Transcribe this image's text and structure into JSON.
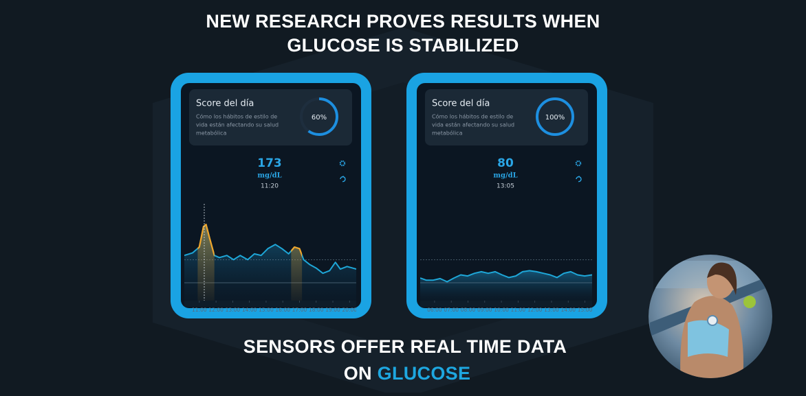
{
  "header": {
    "title_lines": [
      "NEW RESEARCH PROVES RESULTS WHEN",
      "GLUCOSE IS STABILIZED"
    ]
  },
  "panels": [
    {
      "score": {
        "title": "Score del día",
        "description": [
          "Cómo los hábitos de estilo de",
          "vida están afectando su salud",
          "metabólica"
        ],
        "percent": {
          "value": 60,
          "label": "60%"
        }
      },
      "reading": {
        "value": 173,
        "unit": "mg/dL",
        "time": "11:20"
      },
      "chart": {
        "type": "line",
        "x": [
          10.1,
          10.6,
          11.0,
          11.25,
          11.4,
          11.6,
          11.9,
          12.2,
          12.65,
          13.05,
          13.45,
          13.9,
          14.3,
          14.7,
          15.1,
          15.55,
          15.95,
          16.35,
          16.7,
          17.0,
          17.25,
          17.6,
          18.0,
          18.4,
          18.8,
          19.15,
          19.45,
          19.85,
          20.4
        ],
        "values": [
          114,
          119,
          130,
          169,
          173,
          149,
          114,
          110,
          114,
          106,
          114,
          106,
          117,
          114,
          127,
          135,
          127,
          117,
          130,
          127,
          106,
          97,
          90,
          80,
          85,
          101,
          88,
          93,
          88
        ],
        "xlim": [
          10.1,
          20.4
        ],
        "ylim": [
          28,
          215
        ],
        "xticks": [
          {
            "value": 11,
            "label": "11:00"
          },
          {
            "value": 12,
            "label": "12:00"
          },
          {
            "value": 13,
            "label": "13:00"
          },
          {
            "value": 14,
            "label": "14:00"
          },
          {
            "value": 15,
            "label": "15:00"
          },
          {
            "value": 16,
            "label": "16:00"
          },
          {
            "value": 17,
            "label": "17:00"
          },
          {
            "value": 18,
            "label": "18:00"
          },
          {
            "value": 19,
            "label": "19:00"
          },
          {
            "value": 20,
            "label": "20:00"
          }
        ],
        "reference_lines": [
          106,
          62
        ],
        "color": "#1ea7d8",
        "alert_color": "#f0a52a",
        "alert_ranges": [
          [
            10.9,
            11.9
          ],
          [
            16.5,
            17.15
          ]
        ]
      }
    },
    {
      "score": {
        "title": "Score del día",
        "description": [
          "Cómo los hábitos de estilo de",
          "vida están afectando su salud",
          "metabólica"
        ],
        "percent": {
          "value": 100,
          "label": "100%"
        }
      },
      "reading": {
        "value": 80,
        "unit": "mg/dL",
        "time": "13:05"
      },
      "chart": {
        "type": "line",
        "x": [
          5.14,
          5.5,
          5.92,
          6.33,
          6.75,
          7.16,
          7.57,
          7.98,
          8.39,
          8.8,
          9.21,
          9.63,
          10.04,
          10.45,
          10.86,
          11.27,
          11.68,
          12.1,
          12.51,
          12.92,
          13.33,
          13.74,
          14.15,
          14.56,
          14.98,
          15.43
        ],
        "values": [
          71,
          67,
          67,
          70,
          64,
          71,
          77,
          75,
          80,
          83,
          80,
          83,
          77,
          72,
          75,
          83,
          85,
          83,
          80,
          77,
          72,
          80,
          83,
          77,
          75,
          77
        ],
        "xlim": [
          5.14,
          15.43
        ],
        "ylim": [
          28,
          215
        ],
        "xticks": [
          {
            "value": 6,
            "label": "06:00"
          },
          {
            "value": 7,
            "label": "07:00"
          },
          {
            "value": 8,
            "label": "08:00"
          },
          {
            "value": 9,
            "label": "09:00"
          },
          {
            "value": 10,
            "label": "10:00"
          },
          {
            "value": 11,
            "label": "11:00"
          },
          {
            "value": 12,
            "label": "12:00"
          },
          {
            "value": 13,
            "label": "13:00"
          },
          {
            "value": 14,
            "label": "14:00"
          },
          {
            "value": 15,
            "label": "15:00"
          }
        ],
        "reference_lines": [
          106,
          62
        ],
        "color": "#1ea7d8",
        "alert_color": "#f0a52a",
        "alert_ranges": []
      }
    }
  ],
  "footer": {
    "line1": "SENSORS OFFER REAL TIME DATA",
    "line2_prefix": "ON",
    "line2_highlight": "GLUCOSE"
  }
}
